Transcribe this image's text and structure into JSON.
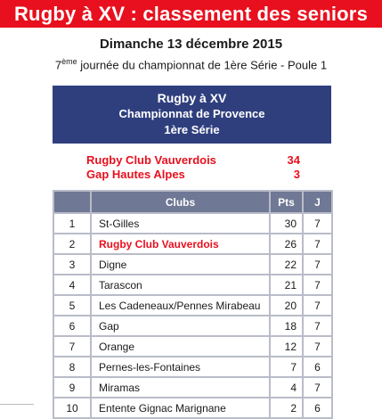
{
  "header": {
    "title": "Rugby à XV : classement des seniors",
    "date": "Dimanche 13 décembre 2015",
    "journee_prefix": "7",
    "journee_sup": "ème",
    "journee_text": " journée du championnat de 1ère Série - Poule 1"
  },
  "box": {
    "line1": "Rugby à XV",
    "line2": "Championnat de Provence",
    "line3": "1ère Série"
  },
  "results": [
    {
      "team": "Rugby Club Vauverdois",
      "score": "34"
    },
    {
      "team": "Gap Hautes Alpes",
      "score": "3"
    }
  ],
  "table": {
    "headers": {
      "rank": "",
      "club": "Clubs",
      "pts": "Pts",
      "j": "J"
    },
    "rows": [
      {
        "rank": "1",
        "club": "St-Gilles",
        "pts": "30",
        "j": "7"
      },
      {
        "rank": "2",
        "club": "Rugby Club Vauverdois",
        "pts": "26",
        "j": "7"
      },
      {
        "rank": "3",
        "club": "Digne",
        "pts": "22",
        "j": "7"
      },
      {
        "rank": "4",
        "club": "Tarascon",
        "pts": "21",
        "j": "7"
      },
      {
        "rank": "5",
        "club": "Les Cadeneaux/Pennes Mirabeau",
        "pts": "20",
        "j": "7"
      },
      {
        "rank": "6",
        "club": "Gap",
        "pts": "18",
        "j": "7"
      },
      {
        "rank": "7",
        "club": "Orange",
        "pts": "12",
        "j": "7"
      },
      {
        "rank": "8",
        "club": "Pernes-les-Fontaines",
        "pts": "7",
        "j": "6"
      },
      {
        "rank": "9",
        "club": "Miramas",
        "pts": "4",
        "j": "7"
      },
      {
        "rank": "10",
        "club": "Entente Gignac Marignane",
        "pts": "2",
        "j": "6"
      }
    ]
  },
  "colors": {
    "banner": "#e8101e",
    "box": "#2f3f7e",
    "table_header": "#6f7894",
    "highlight": "#e8101e"
  }
}
